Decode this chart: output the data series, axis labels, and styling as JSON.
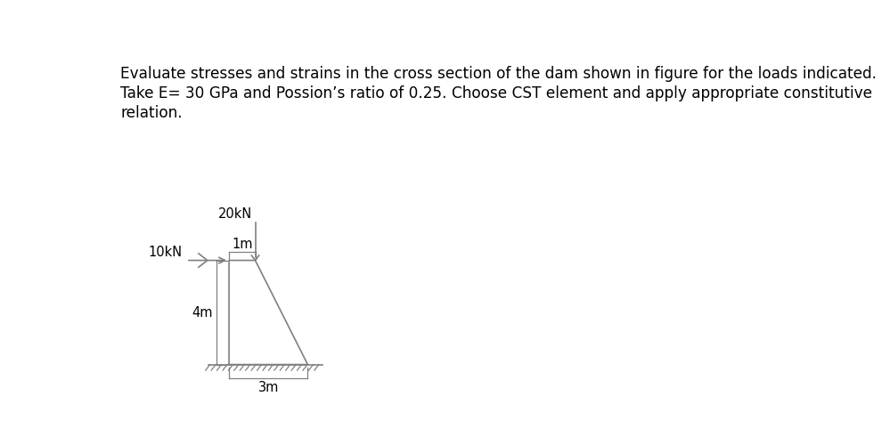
{
  "background_color": "#ffffff",
  "text_color": "#000000",
  "line_color": "#808080",
  "problem_text_lines": [
    "Evaluate stresses and strains in the cross section of the dam shown in figure for the loads indicated.",
    "Take E= 30 GPa and Possion’s ratio of 0.25. Choose CST element and apply appropriate constitutive",
    "relation."
  ],
  "problem_text_fontsize": 12.2,
  "force_10kN_label": "10kN",
  "force_20kN_label": "20kN",
  "dim_1m_label": "1m",
  "dim_3m_label": "3m",
  "dim_4m_label": "4m",
  "label_fontsize": 10.5,
  "ox": 1.72,
  "oy": 0.46,
  "sx": 0.38,
  "sy": 0.38
}
